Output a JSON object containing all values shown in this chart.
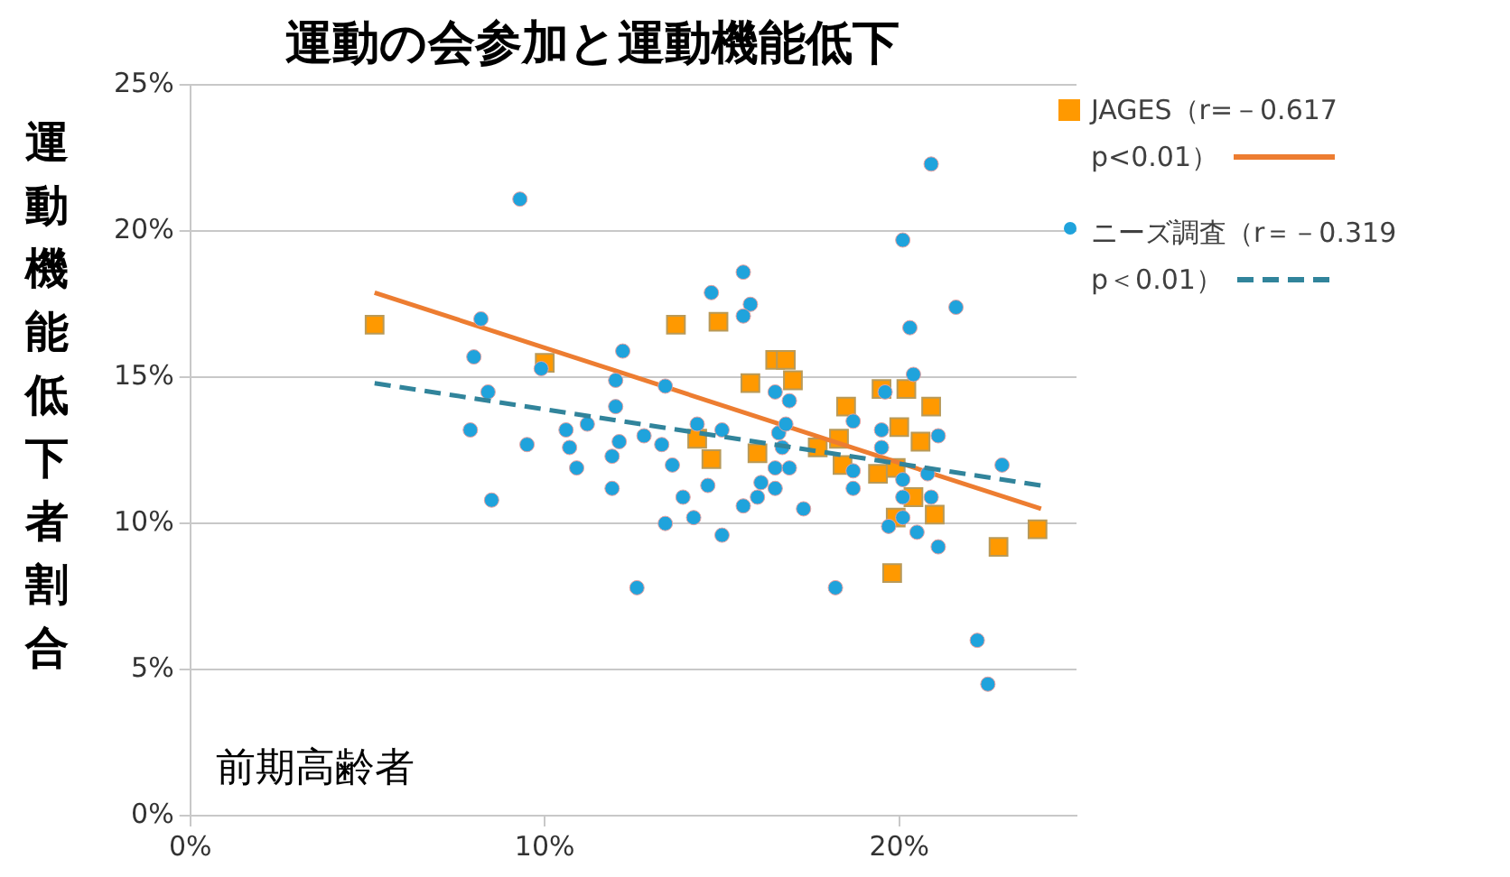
{
  "chart_data": {
    "type": "scatter",
    "title": "運動の会参加と運動機能低下",
    "ylabel": "運動機能低下者割合",
    "annotations": [
      "前期高齢者"
    ],
    "xlim": [
      0,
      25
    ],
    "xticks": [
      {
        "value": 0,
        "label": "0%"
      },
      {
        "value": 10,
        "label": "10%"
      },
      {
        "value": 20,
        "label": "20%"
      }
    ],
    "ylim": [
      0,
      25
    ],
    "yticks": [
      {
        "value": 0,
        "label": "0%"
      },
      {
        "value": 5,
        "label": "5%"
      },
      {
        "value": 10,
        "label": "10%"
      },
      {
        "value": 15,
        "label": "15%"
      },
      {
        "value": 20,
        "label": "20%"
      },
      {
        "value": 25,
        "label": "25%"
      }
    ],
    "grid": "y",
    "legend": "right",
    "series": [
      {
        "name": "JAGES（r=－0.617 p<0.01）",
        "marker": "square",
        "color": "#ff9900",
        "x": [
          5.2,
          10.0,
          13.7,
          14.9,
          16.5,
          16.8,
          15.8,
          17.0,
          18.5,
          19.5,
          20.2,
          20.9,
          20.0,
          18.3,
          20.6,
          14.3,
          14.7,
          16.0,
          17.7,
          18.4,
          19.4,
          19.9,
          20.4,
          19.9,
          21.0,
          19.8,
          22.8,
          23.9
        ],
        "values": [
          16.8,
          15.5,
          16.8,
          16.9,
          15.6,
          15.6,
          14.8,
          14.9,
          14.0,
          14.6,
          14.6,
          14.0,
          13.3,
          12.9,
          12.8,
          12.9,
          12.2,
          12.4,
          12.6,
          12.0,
          11.7,
          11.9,
          10.9,
          10.2,
          10.3,
          8.3,
          9.2,
          9.8
        ]
      },
      {
        "type": "line",
        "line_style": "solid",
        "marker": "none",
        "color": "#ed7d31",
        "x": [
          5.2,
          24.0
        ],
        "values": [
          17.9,
          10.5
        ]
      },
      {
        "name": "ニーズ調査（r＝－0.319 p＜0.01）",
        "marker": "circle",
        "color": "#1fa3dc",
        "x": [
          9.3,
          8.2,
          8.0,
          9.9,
          12.2,
          12.0,
          8.4,
          7.9,
          12.0,
          11.2,
          10.6,
          12.1,
          9.5,
          10.7,
          11.9,
          10.9,
          11.9,
          8.5,
          20.9,
          20.1,
          15.6,
          14.7,
          15.8,
          15.6,
          21.6,
          20.3,
          13.4,
          20.4,
          16.5,
          16.9,
          19.6,
          14.3,
          15.0,
          12.8,
          13.3,
          16.6,
          16.8,
          18.7,
          19.5,
          21.1,
          16.7,
          19.5,
          13.6,
          16.5,
          16.9,
          18.7,
          20.8,
          22.9,
          14.6,
          16.1,
          13.9,
          16.5,
          18.7,
          20.1,
          20.1,
          20.9,
          16.0,
          15.6,
          17.3,
          13.4,
          14.2,
          15.0,
          19.7,
          20.1,
          20.5,
          21.1,
          12.6,
          18.2,
          22.2,
          22.5
        ],
        "values": [
          21.1,
          17.0,
          15.7,
          15.3,
          15.9,
          14.9,
          14.5,
          13.2,
          14.0,
          13.4,
          13.2,
          12.8,
          12.7,
          12.6,
          12.3,
          11.9,
          11.2,
          10.8,
          22.3,
          19.7,
          18.6,
          17.9,
          17.5,
          17.1,
          17.4,
          16.7,
          14.7,
          15.1,
          14.5,
          14.2,
          14.5,
          13.4,
          13.2,
          13.0,
          12.7,
          13.1,
          13.4,
          13.5,
          13.2,
          13.0,
          12.6,
          12.6,
          12.0,
          11.9,
          11.9,
          11.8,
          11.7,
          12.0,
          11.3,
          11.4,
          10.9,
          11.2,
          11.2,
          11.5,
          10.9,
          10.9,
          10.9,
          10.6,
          10.5,
          10.0,
          10.2,
          9.6,
          9.9,
          10.2,
          9.7,
          9.2,
          7.8,
          7.8,
          6.0,
          4.5
        ]
      },
      {
        "type": "line",
        "line_style": "dashed",
        "marker": "none",
        "color": "#31849b",
        "x": [
          5.2,
          24.0
        ],
        "values": [
          14.8,
          11.3
        ]
      }
    ]
  }
}
